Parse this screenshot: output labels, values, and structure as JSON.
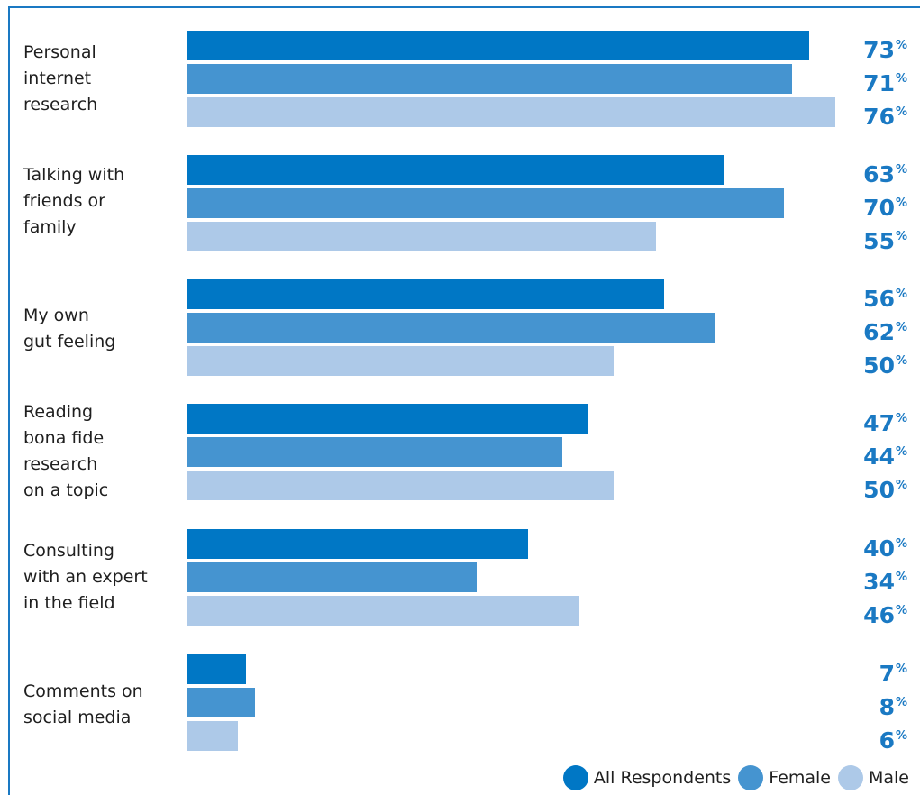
{
  "chart_data": {
    "type": "bar",
    "orientation": "horizontal",
    "categories": [
      "Personal\ninternet\nresearch",
      "Talking with\nfriends or\nfamily",
      "My own\ngut feeling",
      "Reading\nbona fide\nresearch\non a topic",
      "Consulting\nwith an expert\nin the field",
      "Comments on\nsocial media"
    ],
    "series": [
      {
        "name": "All Respondents",
        "color": "#0077c5",
        "values": [
          73,
          63,
          56,
          47,
          40,
          7
        ]
      },
      {
        "name": "Female",
        "color": "#4594d0",
        "values": [
          71,
          70,
          62,
          44,
          34,
          8
        ]
      },
      {
        "name": "Male",
        "color": "#adc9e8",
        "values": [
          76,
          55,
          50,
          50,
          46,
          6
        ]
      }
    ],
    "value_suffix": "%",
    "xlim": [
      0,
      100
    ],
    "legend": "bottom-right",
    "grid": false
  }
}
